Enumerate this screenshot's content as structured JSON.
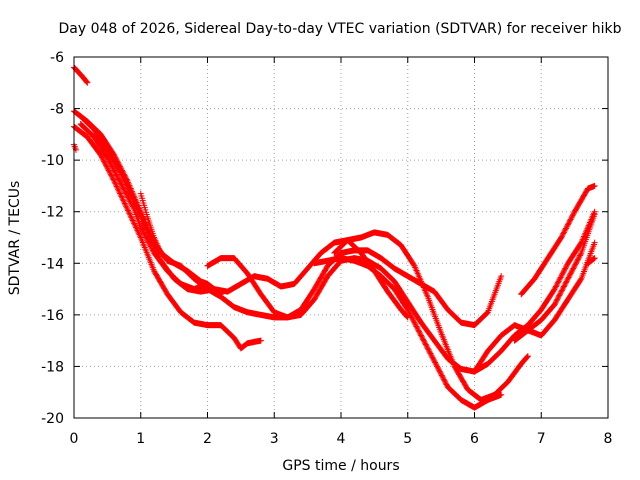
{
  "chart_data": {
    "type": "scatter",
    "title": "Day 048 of 2026, Sidereal Day-to-day VTEC variation (SDTVAR) for receiver hikb",
    "xlabel": "GPS time / hours",
    "ylabel": "SDTVAR / TECUs",
    "xlim": [
      0,
      8
    ],
    "ylim": [
      -20,
      -6
    ],
    "xticks": [
      0,
      1,
      2,
      3,
      4,
      5,
      6,
      7,
      8
    ],
    "yticks": [
      -20,
      -18,
      -16,
      -14,
      -12,
      -10,
      -8,
      -6
    ],
    "grid": true,
    "marker": "+",
    "series_color": "#ff0000",
    "series": [
      {
        "name": "trace-1",
        "points": [
          [
            0.0,
            -6.4
          ],
          [
            0.07,
            -6.6
          ],
          [
            0.14,
            -6.8
          ],
          [
            0.2,
            -7.0
          ]
        ]
      },
      {
        "name": "trace-2",
        "points": [
          [
            0.0,
            -9.4
          ],
          [
            0.03,
            -9.6
          ]
        ]
      },
      {
        "name": "trace-3",
        "points": [
          [
            0.0,
            -8.1
          ],
          [
            0.2,
            -8.5
          ],
          [
            0.4,
            -9.0
          ],
          [
            0.6,
            -9.8
          ],
          [
            0.8,
            -10.8
          ],
          [
            1.0,
            -12.0
          ],
          [
            1.2,
            -13.2
          ],
          [
            1.4,
            -13.9
          ],
          [
            1.6,
            -14.1
          ],
          [
            1.8,
            -14.6
          ],
          [
            2.0,
            -15.0
          ],
          [
            2.2,
            -15.3
          ],
          [
            2.4,
            -15.7
          ],
          [
            2.6,
            -15.9
          ],
          [
            2.8,
            -16.0
          ],
          [
            3.0,
            -16.1
          ],
          [
            3.2,
            -16.1
          ],
          [
            3.4,
            -16.0
          ],
          [
            3.6,
            -15.4
          ],
          [
            3.8,
            -14.5
          ],
          [
            4.0,
            -13.9
          ],
          [
            4.2,
            -13.8
          ],
          [
            4.4,
            -13.9
          ],
          [
            4.6,
            -14.2
          ],
          [
            4.8,
            -14.7
          ],
          [
            5.0,
            -15.5
          ],
          [
            5.2,
            -16.3
          ],
          [
            5.4,
            -17.0
          ],
          [
            5.6,
            -17.7
          ],
          [
            5.8,
            -18.1
          ],
          [
            6.0,
            -18.2
          ],
          [
            6.2,
            -17.9
          ],
          [
            6.4,
            -17.4
          ],
          [
            6.6,
            -16.8
          ],
          [
            6.8,
            -16.4
          ],
          [
            7.0,
            -15.8
          ],
          [
            7.2,
            -15.0
          ],
          [
            7.4,
            -14.0
          ],
          [
            7.6,
            -13.2
          ],
          [
            7.8,
            -12.0
          ]
        ]
      },
      {
        "name": "trace-4",
        "points": [
          [
            0.0,
            -8.7
          ],
          [
            0.2,
            -9.1
          ],
          [
            0.4,
            -9.8
          ],
          [
            0.6,
            -10.8
          ],
          [
            0.8,
            -11.9
          ],
          [
            1.0,
            -13.0
          ],
          [
            1.2,
            -14.3
          ],
          [
            1.4,
            -15.2
          ],
          [
            1.6,
            -15.9
          ],
          [
            1.8,
            -16.3
          ],
          [
            2.0,
            -16.4
          ],
          [
            2.2,
            -16.4
          ],
          [
            2.4,
            -16.9
          ],
          [
            2.5,
            -17.3
          ],
          [
            2.6,
            -17.1
          ],
          [
            2.8,
            -17.0
          ]
        ]
      },
      {
        "name": "trace-5",
        "points": [
          [
            0.1,
            -8.3
          ],
          [
            0.3,
            -8.8
          ],
          [
            0.5,
            -9.6
          ],
          [
            0.7,
            -10.5
          ],
          [
            0.9,
            -11.6
          ],
          [
            1.1,
            -12.8
          ],
          [
            1.3,
            -13.9
          ],
          [
            1.5,
            -14.6
          ],
          [
            1.7,
            -15.0
          ],
          [
            1.9,
            -15.1
          ],
          [
            2.1,
            -15.0
          ],
          [
            2.3,
            -15.1
          ],
          [
            2.5,
            -14.8
          ],
          [
            2.7,
            -14.5
          ],
          [
            2.9,
            -14.6
          ],
          [
            3.1,
            -14.9
          ],
          [
            3.3,
            -14.8
          ],
          [
            3.5,
            -14.2
          ],
          [
            3.7,
            -13.6
          ],
          [
            3.9,
            -13.2
          ],
          [
            4.1,
            -13.1
          ],
          [
            4.3,
            -13.6
          ],
          [
            4.5,
            -14.3
          ],
          [
            4.7,
            -15.1
          ],
          [
            4.9,
            -15.8
          ],
          [
            5.0,
            -16.1
          ]
        ]
      },
      {
        "name": "trace-6",
        "points": [
          [
            0.1,
            -8.6
          ],
          [
            0.3,
            -9.1
          ],
          [
            0.5,
            -9.9
          ],
          [
            0.7,
            -10.9
          ],
          [
            0.9,
            -11.9
          ],
          [
            1.0,
            -12.6
          ],
          [
            1.2,
            -13.6
          ],
          [
            1.4,
            -14.3
          ],
          [
            1.6,
            -14.8
          ],
          [
            1.8,
            -15.0
          ],
          [
            2.0,
            -14.8
          ],
          [
            2.2,
            -15.2
          ]
        ]
      },
      {
        "name": "trace-7",
        "points": [
          [
            1.0,
            -11.3
          ],
          [
            1.1,
            -12.2
          ],
          [
            1.2,
            -13.0
          ],
          [
            1.3,
            -13.6
          ],
          [
            1.5,
            -14.0
          ],
          [
            1.7,
            -14.3
          ],
          [
            1.9,
            -14.7
          ],
          [
            2.0,
            -14.8
          ]
        ]
      },
      {
        "name": "trace-8",
        "points": [
          [
            2.0,
            -14.1
          ],
          [
            2.2,
            -13.8
          ],
          [
            2.4,
            -13.8
          ],
          [
            2.6,
            -14.4
          ],
          [
            2.8,
            -15.2
          ],
          [
            3.0,
            -15.9
          ],
          [
            3.2,
            -16.1
          ],
          [
            3.4,
            -15.8
          ],
          [
            3.6,
            -15.0
          ],
          [
            3.8,
            -14.1
          ],
          [
            4.0,
            -13.6
          ],
          [
            4.2,
            -13.5
          ],
          [
            4.4,
            -13.5
          ],
          [
            4.6,
            -13.8
          ],
          [
            4.8,
            -14.2
          ],
          [
            5.0,
            -14.5
          ],
          [
            5.2,
            -14.8
          ],
          [
            5.4,
            -15.1
          ],
          [
            5.6,
            -15.8
          ],
          [
            5.8,
            -16.3
          ],
          [
            6.0,
            -16.4
          ],
          [
            6.2,
            -15.9
          ],
          [
            6.4,
            -14.5
          ]
        ]
      },
      {
        "name": "trace-9",
        "points": [
          [
            3.9,
            -13.6
          ],
          [
            4.1,
            -13.1
          ],
          [
            4.3,
            -13.0
          ],
          [
            4.5,
            -12.8
          ],
          [
            4.7,
            -12.9
          ],
          [
            4.9,
            -13.3
          ],
          [
            5.1,
            -14.1
          ],
          [
            5.3,
            -15.3
          ],
          [
            5.5,
            -16.7
          ],
          [
            5.7,
            -18.0
          ],
          [
            5.9,
            -18.9
          ],
          [
            6.1,
            -19.3
          ],
          [
            6.3,
            -19.1
          ],
          [
            6.5,
            -18.6
          ],
          [
            6.7,
            -17.9
          ],
          [
            6.8,
            -17.6
          ]
        ]
      },
      {
        "name": "trace-10",
        "points": [
          [
            3.6,
            -14.0
          ],
          [
            3.8,
            -13.9
          ],
          [
            4.0,
            -13.8
          ],
          [
            4.2,
            -13.9
          ],
          [
            4.4,
            -14.1
          ],
          [
            4.6,
            -14.5
          ],
          [
            4.8,
            -15.0
          ],
          [
            5.0,
            -15.8
          ],
          [
            5.2,
            -16.8
          ],
          [
            5.4,
            -17.8
          ],
          [
            5.6,
            -18.8
          ],
          [
            5.8,
            -19.3
          ],
          [
            6.0,
            -19.6
          ],
          [
            6.2,
            -19.3
          ],
          [
            6.4,
            -19.1
          ]
        ]
      },
      {
        "name": "trace-11",
        "points": [
          [
            6.7,
            -15.2
          ],
          [
            6.9,
            -14.6
          ],
          [
            7.1,
            -13.8
          ],
          [
            7.3,
            -13.0
          ],
          [
            7.5,
            -12.0
          ],
          [
            7.7,
            -11.1
          ],
          [
            7.8,
            -11.0
          ]
        ]
      },
      {
        "name": "trace-12",
        "points": [
          [
            6.0,
            -18.2
          ],
          [
            6.2,
            -17.4
          ],
          [
            6.4,
            -16.8
          ],
          [
            6.6,
            -16.4
          ],
          [
            6.8,
            -16.6
          ],
          [
            7.0,
            -16.8
          ],
          [
            7.2,
            -16.2
          ],
          [
            7.4,
            -15.4
          ],
          [
            7.6,
            -14.6
          ],
          [
            7.8,
            -13.2
          ]
        ]
      },
      {
        "name": "trace-13",
        "points": [
          [
            6.6,
            -17.0
          ],
          [
            6.8,
            -16.6
          ],
          [
            7.0,
            -16.2
          ],
          [
            7.2,
            -15.6
          ],
          [
            7.4,
            -14.6
          ],
          [
            7.6,
            -13.6
          ],
          [
            7.8,
            -12.1
          ]
        ]
      },
      {
        "name": "trace-14",
        "points": [
          [
            7.7,
            -14.0
          ],
          [
            7.8,
            -13.8
          ]
        ]
      }
    ]
  }
}
